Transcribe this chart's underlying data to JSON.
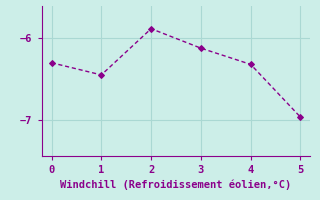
{
  "x": [
    0,
    1,
    2,
    3,
    4,
    5
  ],
  "y": [
    -6.3,
    -6.45,
    -5.88,
    -6.12,
    -6.32,
    -6.97
  ],
  "line_color": "#8B008B",
  "marker": "D",
  "marker_size": 3,
  "marker_color": "#8B008B",
  "background_color": "#cceee8",
  "grid_color": "#aad8d3",
  "xlabel": "Windchill (Refroidissement éolien,°C)",
  "xlabel_color": "#8B008B",
  "xlabel_fontsize": 7.5,
  "tick_color": "#8B008B",
  "tick_fontsize": 7.5,
  "yticks": [
    -7,
    -6
  ],
  "xticks": [
    0,
    1,
    2,
    3,
    4,
    5
  ],
  "xlim": [
    -0.2,
    5.2
  ],
  "ylim": [
    -7.45,
    -5.6
  ],
  "spine_color": "#8B008B",
  "axis_color": "#8B008B"
}
